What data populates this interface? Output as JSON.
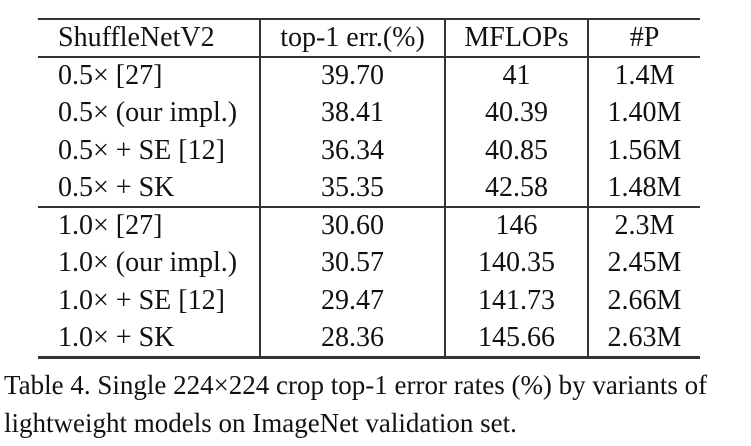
{
  "table": {
    "headers": {
      "model": "ShuffleNetV2",
      "top1": "top-1 err.(%)",
      "mflops": "MFLOPs",
      "params": "#P"
    },
    "rows": [
      {
        "model": "0.5× [27]",
        "top1": "39.70",
        "mflops": "41",
        "params": "1.4M"
      },
      {
        "model": "0.5× (our impl.)",
        "top1": "38.41",
        "mflops": "40.39",
        "params": "1.40M"
      },
      {
        "model": "0.5× + SE [12]",
        "top1": "36.34",
        "mflops": "40.85",
        "params": "1.56M"
      },
      {
        "model": "0.5× + SK",
        "top1": "35.35",
        "mflops": "42.58",
        "params": "1.48M"
      },
      {
        "model": "1.0× [27]",
        "top1": "30.60",
        "mflops": "146",
        "params": "2.3M"
      },
      {
        "model": "1.0× (our impl.)",
        "top1": "30.57",
        "mflops": "140.35",
        "params": "2.45M"
      },
      {
        "model": "1.0× + SE [12]",
        "top1": "29.47",
        "mflops": "141.73",
        "params": "2.66M"
      },
      {
        "model": "1.0× + SK",
        "top1": "28.36",
        "mflops": "145.66",
        "params": "2.63M"
      }
    ],
    "bold_top1_rows": [
      3,
      7
    ]
  },
  "caption": {
    "line1": "Table 4. Single 224×224 crop top-1 error rates (%) by variants of",
    "line2": "lightweight models on ImageNet validation set."
  },
  "colors": {
    "border": "#333333",
    "text": "#111111",
    "background": "#ffffff"
  }
}
